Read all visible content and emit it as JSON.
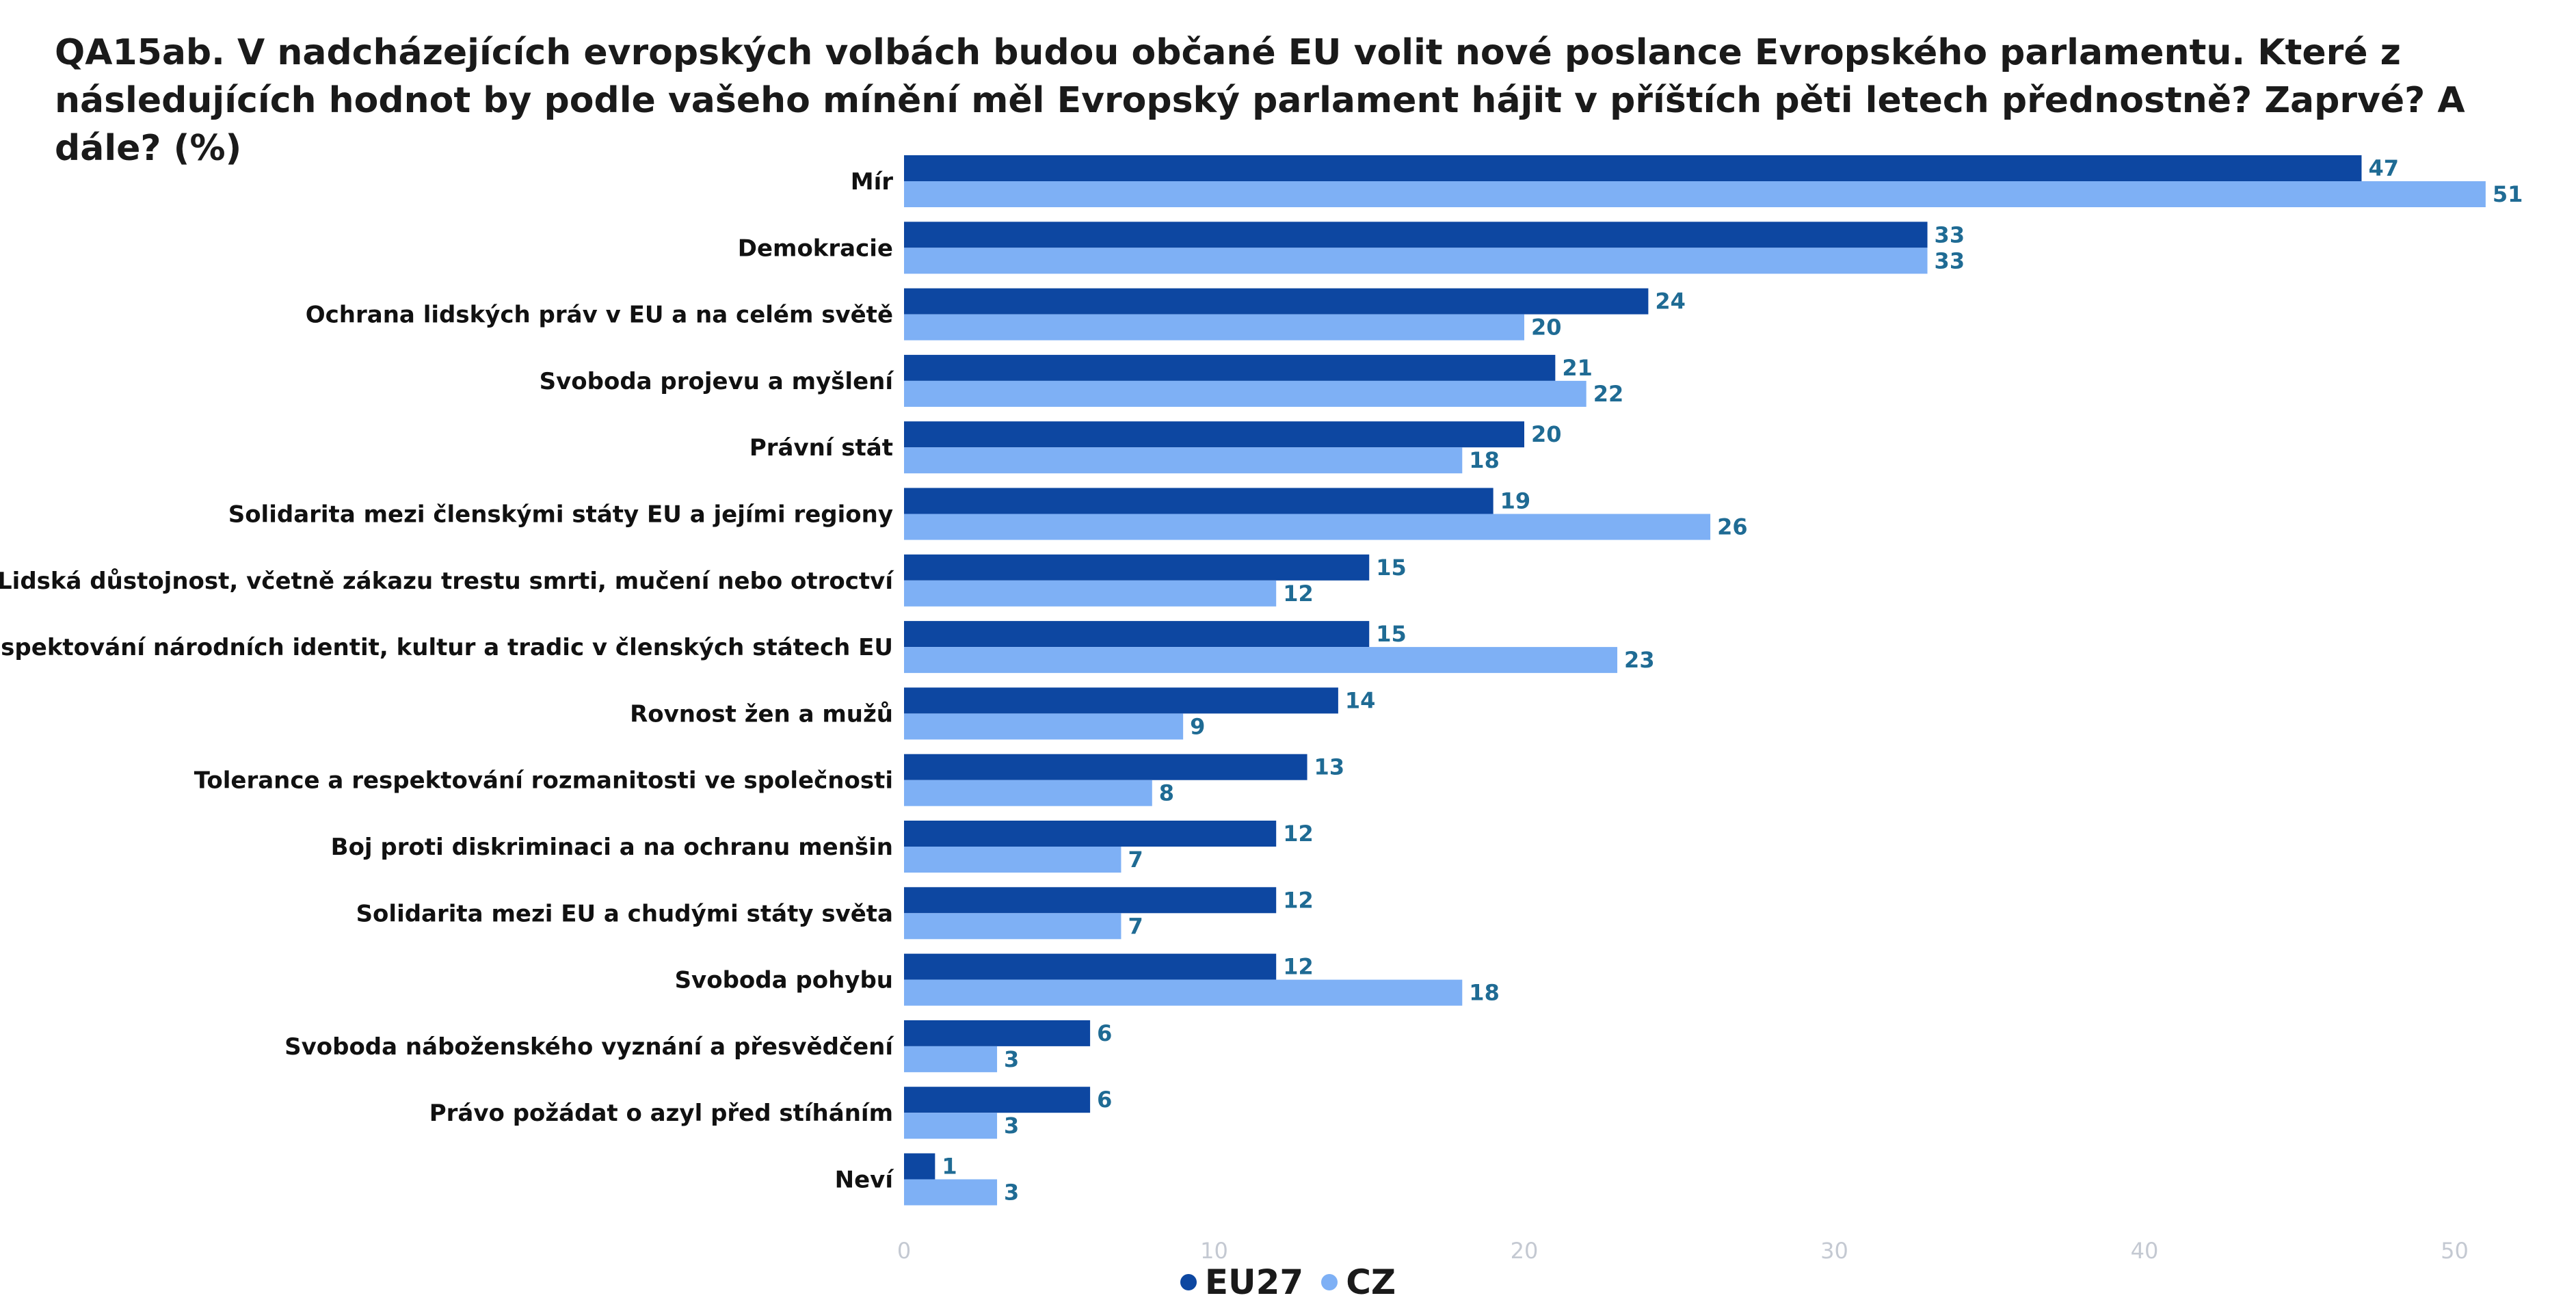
{
  "chart_data": {
    "type": "bar",
    "orientation": "horizontal",
    "title": "QA15ab. V nadcházejících evropských volbách budou občané EU volit nové poslance Evropského parlamentu. Které z následujících hodnot by podle vašeho mínění měl Evropský parlament hájit v příštích pěti letech přednostně? Zaprvé? A dále? (%)",
    "categories": [
      "Mír",
      "Demokracie",
      "Ochrana lidských práv v EU a na celém světě",
      "Svoboda projevu a myšlení",
      "Právní stát",
      "Solidarita mezi členskými státy EU a jejími regiony",
      "Lidská důstojnost, včetně zákazu trestu smrti, mučení nebo otroctví",
      "Respektování národních identit, kultur a tradic v členských státech EU",
      "Rovnost žen a mužů",
      "Tolerance a respektování rozmanitosti ve společnosti",
      "Boj proti diskriminaci a na ochranu menšin",
      "Solidarita mezi EU a chudými státy světa",
      "Svoboda pohybu",
      "Svoboda náboženského vyznání a přesvědčení",
      "Právo požádat o azyl před stíháním",
      "Neví"
    ],
    "series": [
      {
        "name": "EU27",
        "color": "#0d47a1",
        "values": [
          47,
          33,
          24,
          21,
          20,
          19,
          15,
          15,
          14,
          13,
          12,
          12,
          12,
          6,
          6,
          1
        ]
      },
      {
        "name": "CZ",
        "color": "#7eb0f5",
        "values": [
          51,
          33,
          20,
          22,
          18,
          26,
          12,
          23,
          9,
          8,
          7,
          7,
          18,
          3,
          3,
          3
        ]
      }
    ],
    "xlim": [
      0,
      50
    ],
    "xticks": [
      0,
      10,
      20,
      30,
      40,
      50
    ],
    "grid": false,
    "legend_position": "bottom-center",
    "value_label_color": "#1f6b94",
    "tick_label_color": "#c4c9d2"
  }
}
